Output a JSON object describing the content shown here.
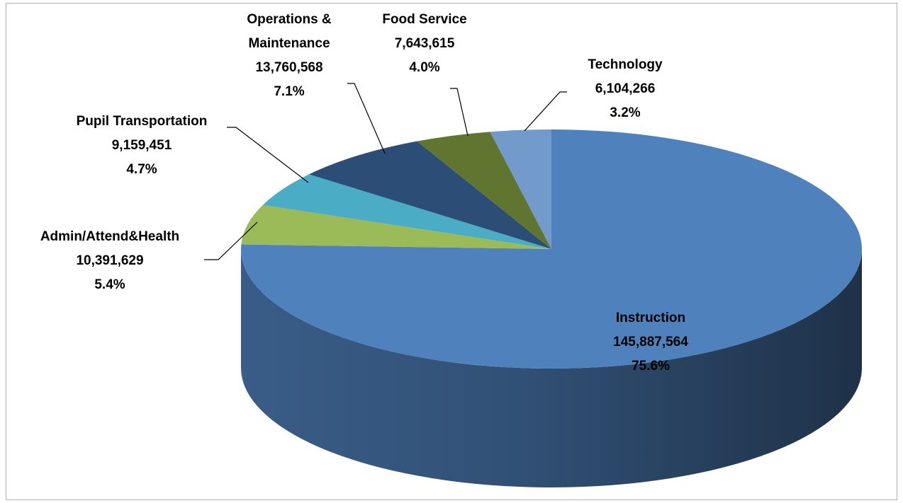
{
  "chart_data": {
    "type": "pie3d",
    "categories": [
      "Instruction",
      "Admin/Attend&Health",
      "Pupil Transportation",
      "Operations &\nMaintenance",
      "Food Service",
      "Technology"
    ],
    "values": [
      145887564,
      10391629,
      9159451,
      13760568,
      7643615,
      6104266
    ],
    "value_labels": [
      "145,887,564",
      "10,391,629",
      "9,159,451",
      "13,760,568",
      "7,643,615",
      "6,104,266"
    ],
    "percent_labels": [
      "75.6%",
      "5.4%",
      "4.7%",
      "7.1%",
      "4.0%",
      "3.2%"
    ],
    "colors": [
      "#4f81bd",
      "#9bbb59",
      "#4bacc6",
      "#2c4d75",
      "#5f7530",
      "#729aca"
    ]
  }
}
